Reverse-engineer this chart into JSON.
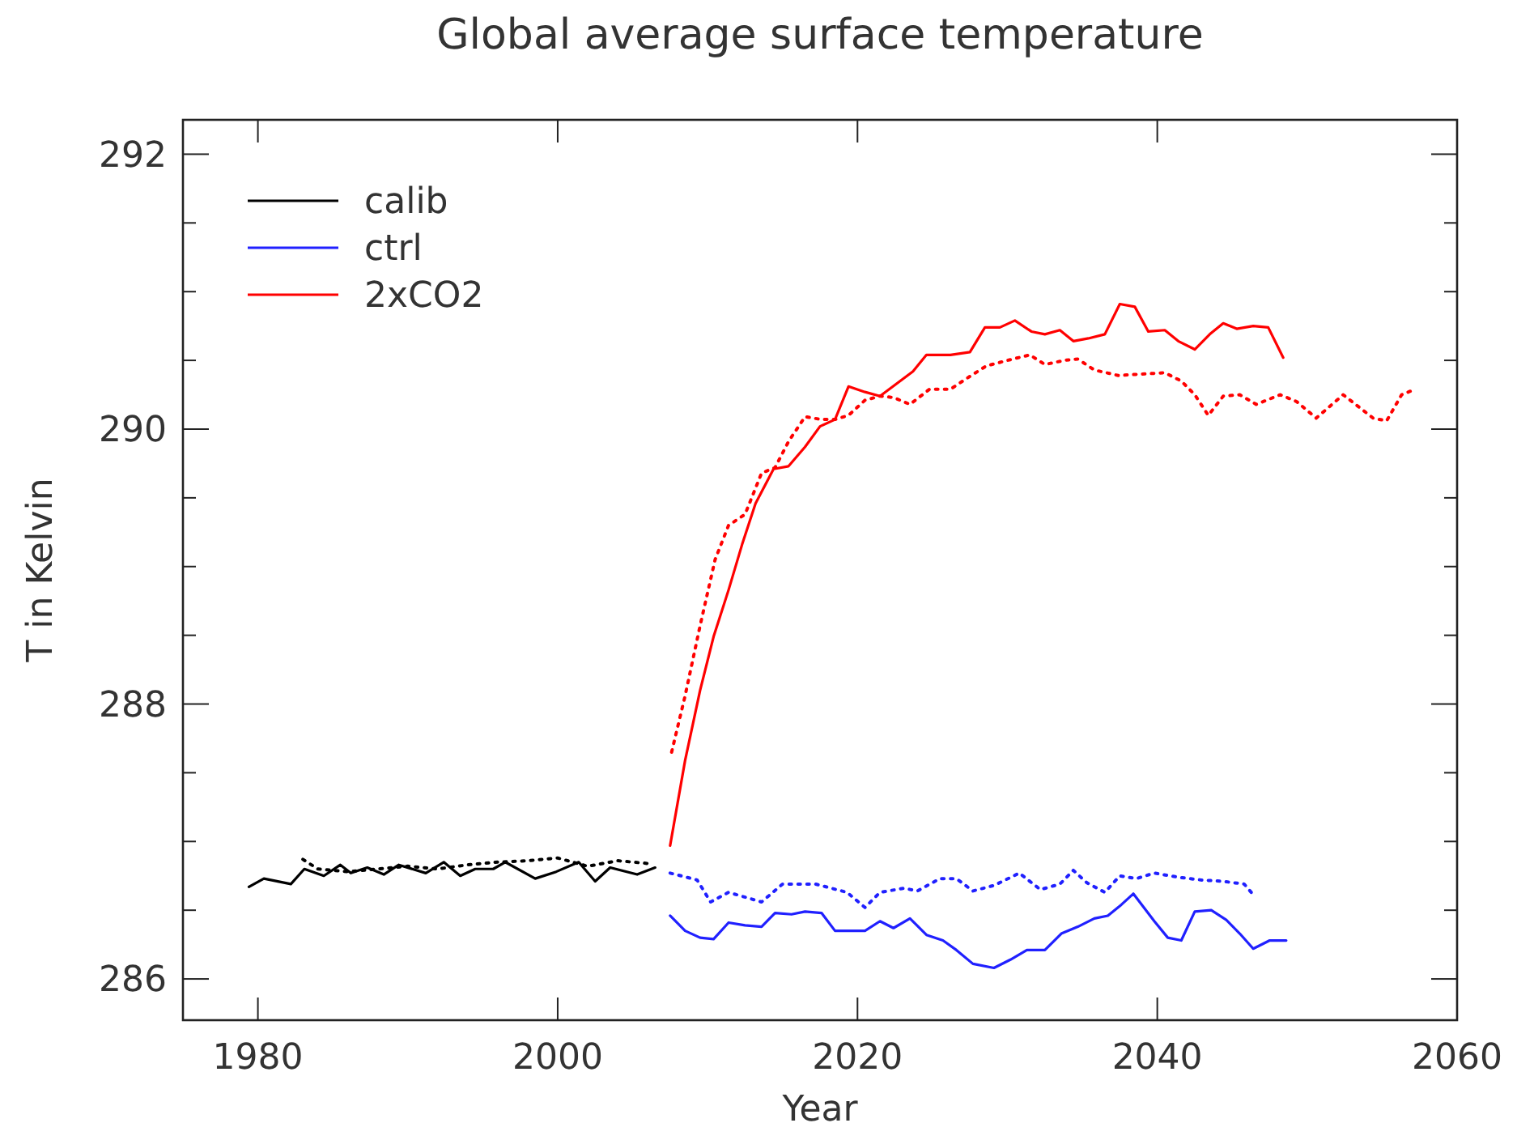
{
  "chart_data": {
    "type": "line",
    "title": "Global average surface temperature",
    "xlabel": "Year",
    "ylabel": "T in Kelvin",
    "xlim": [
      1975,
      2060
    ],
    "xticks": [
      1980,
      2000,
      2020,
      2040,
      2060
    ],
    "ylim": [
      285.7,
      292.25
    ],
    "yticks": [
      286,
      {
        "value": 286.5,
        "label": null
      },
      {
        "value": 287,
        "label": null
      },
      {
        "value": 287.5,
        "label": null
      },
      288,
      {
        "value": 288.5,
        "label": null
      },
      {
        "value": 289,
        "label": null
      },
      {
        "value": 289.5,
        "label": null
      },
      290,
      {
        "value": 290.5,
        "label": null
      },
      {
        "value": 291,
        "label": null
      },
      {
        "value": 291.5,
        "label": null
      },
      292
    ],
    "grid": false,
    "legend": "top left",
    "marker": "none",
    "series": [
      {
        "name": "calib",
        "color": "#000000",
        "line_style": "solid",
        "x": [
          1979.4,
          1980.4,
          1982.2,
          1983.1,
          1984.4,
          1985.5,
          1986.2,
          1987.3,
          1988.4,
          1989.4,
          1991.2,
          1992.4,
          1993.5,
          1994.5,
          1995.7,
          1996.5,
          1998.5,
          1999.9,
          2001.4,
          2002.5,
          2003.5,
          2005.3,
          2006.5
        ],
        "values": [
          286.67,
          286.73,
          286.69,
          286.8,
          286.75,
          286.83,
          286.77,
          286.81,
          286.76,
          286.83,
          286.77,
          286.85,
          286.75,
          286.8,
          286.8,
          286.85,
          286.73,
          286.78,
          286.85,
          286.71,
          286.81,
          286.76,
          286.81
        ]
      },
      {
        "name": "ctrl",
        "color": "#2020ff",
        "line_style": "solid",
        "x": [
          2007.5,
          2008.5,
          2009.5,
          2010.4,
          2011.4,
          2012.5,
          2013.6,
          2014.5,
          2015.6,
          2016.5,
          2017.6,
          2018.5,
          2020.5,
          2021.5,
          2022.4,
          2023.5,
          2024.6,
          2025.7,
          2026.6,
          2027.7,
          2029.1,
          2030.2,
          2031.3,
          2032.5,
          2033.6,
          2034.7,
          2035.8,
          2036.7,
          2037.6,
          2038.4,
          2039.8,
          2040.7,
          2041.6,
          2042.5,
          2043.6,
          2044.6,
          2045.5,
          2046.4,
          2047.5,
          2048.6
        ],
        "values": [
          286.46,
          286.35,
          286.3,
          286.29,
          286.41,
          286.39,
          286.38,
          286.48,
          286.47,
          286.49,
          286.48,
          286.35,
          286.35,
          286.42,
          286.37,
          286.44,
          286.32,
          286.28,
          286.21,
          286.11,
          286.08,
          286.14,
          286.21,
          286.21,
          286.33,
          286.38,
          286.44,
          286.46,
          286.54,
          286.62,
          286.42,
          286.3,
          286.28,
          286.49,
          286.5,
          286.43,
          286.33,
          286.22,
          286.28,
          286.28
        ]
      },
      {
        "name": "2xCO2",
        "color": "#ff0000",
        "line_style": "solid",
        "x": [
          2007.5,
          2008.5,
          2009.5,
          2010.4,
          2011.4,
          2012.3,
          2013.2,
          2014.4,
          2015.4,
          2016.5,
          2017.5,
          2018.5,
          2019.4,
          2020.5,
          2021.5,
          2022.6,
          2023.7,
          2024.6,
          2026.2,
          2027.5,
          2028.5,
          2029.5,
          2030.5,
          2031.6,
          2032.5,
          2033.5,
          2034.4,
          2035.4,
          2036.5,
          2037.5,
          2038.5,
          2039.4,
          2040.5,
          2041.4,
          2042.5,
          2043.5,
          2044.4,
          2045.3,
          2046.4,
          2047.4,
          2048.4
        ],
        "values": [
          286.97,
          287.59,
          288.1,
          288.49,
          288.83,
          289.16,
          289.46,
          289.71,
          289.73,
          289.87,
          290.02,
          290.07,
          290.31,
          290.27,
          290.24,
          290.33,
          290.42,
          290.54,
          290.54,
          290.56,
          290.74,
          290.74,
          290.79,
          290.71,
          290.69,
          290.72,
          290.64,
          290.66,
          290.69,
          290.91,
          290.89,
          290.71,
          290.72,
          290.64,
          290.58,
          290.69,
          290.77,
          290.73,
          290.75,
          290.74,
          290.52
        ]
      },
      {
        "color": "#000000",
        "line_style": "dotted",
        "x": [
          1983,
          1984,
          1986,
          1988,
          1990,
          1992,
          1994,
          1996,
          1998,
          2000,
          2002,
          2004,
          2006
        ],
        "values": [
          286.87,
          286.8,
          286.78,
          286.8,
          286.82,
          286.8,
          286.83,
          286.85,
          286.86,
          286.88,
          286.82,
          286.86,
          286.84
        ]
      },
      {
        "color": "#2020ff",
        "line_style": "dotted",
        "x": [
          2007.5,
          2009.3,
          2010.2,
          2011.4,
          2013.6,
          2015,
          2017.2,
          2019.3,
          2020.5,
          2021.5,
          2023.1,
          2024,
          2025.5,
          2026.6,
          2027.7,
          2029.1,
          2030.8,
          2032.2,
          2033.5,
          2034.4,
          2035.3,
          2036.5,
          2037.5,
          2038.6,
          2039.8,
          2041.4,
          2042.9,
          2044.4,
          2045.8,
          2046.5
        ],
        "values": [
          286.77,
          286.72,
          286.56,
          286.63,
          286.56,
          286.69,
          286.69,
          286.63,
          286.52,
          286.63,
          286.66,
          286.64,
          286.73,
          286.73,
          286.64,
          286.68,
          286.77,
          286.65,
          286.69,
          286.79,
          286.7,
          286.63,
          286.75,
          286.73,
          286.77,
          286.74,
          286.72,
          286.71,
          286.69,
          286.6
        ]
      },
      {
        "color": "#ff0000",
        "line_style": "dotted",
        "x": [
          2007.6,
          2008.5,
          2009.5,
          2010.5,
          2011.4,
          2012.5,
          2013.6,
          2014.5,
          2015.4,
          2016.5,
          2017.6,
          2018.5,
          2019.4,
          2020.5,
          2021.5,
          2022.4,
          2023.5,
          2024.8,
          2026.2,
          2027.3,
          2028.6,
          2030,
          2031.5,
          2032.5,
          2033.8,
          2034.7,
          2035.8,
          2037.4,
          2038.9,
          2040.5,
          2041.6,
          2042.5,
          2043.4,
          2044.4,
          2045.5,
          2046.6,
          2048.2,
          2049.3,
          2050.6,
          2052.4,
          2054.4,
          2055.3,
          2056.3,
          2057.2
        ],
        "values": [
          287.65,
          288.06,
          288.57,
          289.05,
          289.3,
          289.38,
          289.68,
          289.72,
          289.91,
          290.09,
          290.07,
          290.07,
          290.1,
          290.21,
          290.24,
          290.23,
          290.18,
          290.29,
          290.29,
          290.37,
          290.46,
          290.5,
          290.54,
          290.47,
          290.5,
          290.51,
          290.43,
          290.39,
          290.4,
          290.41,
          290.35,
          290.25,
          290.1,
          290.24,
          290.25,
          290.18,
          290.25,
          290.2,
          290.08,
          290.25,
          290.08,
          290.06,
          290.25,
          290.29
        ]
      }
    ]
  }
}
